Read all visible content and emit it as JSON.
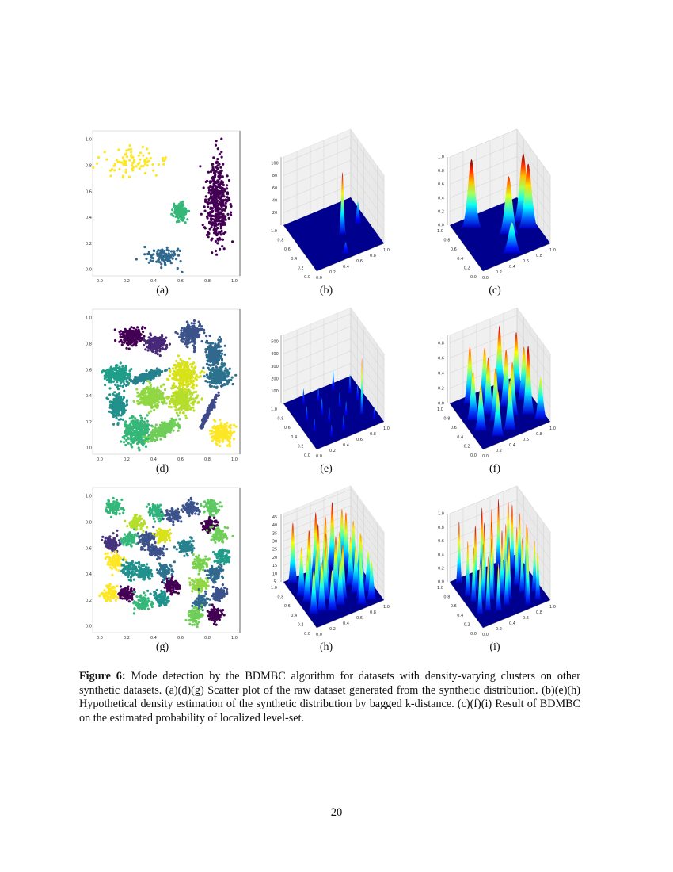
{
  "figure": {
    "subfigure_labels": [
      "(a)",
      "(b)",
      "(c)",
      "(d)",
      "(e)",
      "(f)",
      "(g)",
      "(h)",
      "(i)"
    ],
    "caption_label": "Figure 6:",
    "caption_text": " Mode detection by the BDMBC algorithm for datasets with density-varying clusters on other synthetic datasets. (a)(d)(g) Scatter plot of the raw dataset generated from the synthetic distribution. (b)(e)(h) Hypothetical density estimation of the synthetic distribution by bagged k-distance. (c)(f)(i) Result of BDMBC on the estimated probability of localized level-set."
  },
  "page_number": "20",
  "chart_data": [
    {
      "panel": "a",
      "type": "scatter",
      "xlim": [
        0,
        1
      ],
      "ylim": [
        0,
        1
      ],
      "xticks": [
        "0.0",
        "0.2",
        "0.4",
        "0.6",
        "0.8",
        "1.0"
      ],
      "yticks": [
        "0.0",
        "0.2",
        "0.4",
        "0.6",
        "0.8",
        "1.0"
      ],
      "clusters": [
        {
          "center": [
            0.23,
            0.81
          ],
          "spread": [
            0.12,
            0.06
          ],
          "n": 85,
          "color": "#fde725"
        },
        {
          "center": [
            0.87,
            0.52
          ],
          "spread": [
            0.04,
            0.16
          ],
          "n": 450,
          "color": "#440154"
        },
        {
          "center": [
            0.6,
            0.44
          ],
          "spread": [
            0.022,
            0.032
          ],
          "n": 200,
          "color": "#35b779"
        },
        {
          "center": [
            0.48,
            0.1
          ],
          "spread": [
            0.065,
            0.04
          ],
          "n": 100,
          "color": "#31688e"
        }
      ]
    },
    {
      "panel": "b",
      "type": "surface",
      "colormap": "jet",
      "xticks": [
        "0.0",
        "0.2",
        "0.4",
        "0.6",
        "0.8",
        "1.0"
      ],
      "yticks": [
        "0.0",
        "0.2",
        "0.4",
        "0.6",
        "0.8",
        "1.0"
      ],
      "zticks": [
        "20",
        "40",
        "60",
        "80",
        "100"
      ],
      "zlim": [
        0,
        110
      ],
      "peak_width": 0.05,
      "peaks": [
        [
          0.6,
          0.44,
          100
        ],
        [
          0.87,
          0.52,
          35
        ],
        [
          0.48,
          0.1,
          18
        ]
      ]
    },
    {
      "panel": "c",
      "type": "surface",
      "colormap": "jet",
      "xticks": [
        "0.0",
        "0.2",
        "0.4",
        "0.6",
        "0.8",
        "1.0"
      ],
      "yticks": [
        "0.0",
        "0.2",
        "0.4",
        "0.6",
        "0.8",
        "1.0"
      ],
      "zticks": [
        "0.0",
        "0.2",
        "0.4",
        "0.6",
        "0.8",
        "1.0"
      ],
      "zlim": [
        0,
        1
      ],
      "peak_width": 0.14,
      "peaks": [
        [
          0.23,
          0.81,
          1.0
        ],
        [
          0.87,
          0.55,
          1.0
        ],
        [
          0.87,
          0.4,
          0.95
        ],
        [
          0.6,
          0.44,
          0.85
        ],
        [
          0.48,
          0.1,
          0.45
        ]
      ]
    },
    {
      "panel": "d",
      "type": "scatter",
      "xlim": [
        0,
        1
      ],
      "ylim": [
        0,
        1
      ],
      "xticks": [
        "0.0",
        "0.2",
        "0.4",
        "0.6",
        "0.8",
        "1.0"
      ],
      "yticks": [
        "0.0",
        "0.2",
        "0.4",
        "0.6",
        "0.8",
        "1.0"
      ],
      "clusters": [
        {
          "center": [
            0.23,
            0.86
          ],
          "spread": [
            0.04,
            0.035
          ],
          "n": 250,
          "color": "#440154"
        },
        {
          "center": [
            0.42,
            0.8
          ],
          "spread": [
            0.04,
            0.03
          ],
          "n": 200,
          "color": "#482878"
        },
        {
          "center": [
            0.68,
            0.88
          ],
          "spread": [
            0.04,
            0.04
          ],
          "n": 200,
          "color": "#3b528b"
        },
        {
          "center": [
            0.85,
            0.72
          ],
          "spread": [
            0.03,
            0.045
          ],
          "n": 200,
          "color": "#31688e"
        },
        {
          "center": [
            0.88,
            0.55
          ],
          "spread": [
            0.04,
            0.04
          ],
          "n": 250,
          "color": "#2c728e"
        },
        {
          "center": [
            0.81,
            0.28
          ],
          "spread": [
            0.07,
            0.008
          ],
          "n": 150,
          "color": "#3e4a89",
          "angle": 65
        },
        {
          "center": [
            0.13,
            0.33
          ],
          "spread": [
            0.03,
            0.05
          ],
          "n": 200,
          "color": "#21918c"
        },
        {
          "center": [
            0.13,
            0.56
          ],
          "spread": [
            0.05,
            0.03
          ],
          "n": 250,
          "color": "#1f9e89"
        },
        {
          "center": [
            0.35,
            0.55
          ],
          "spread": [
            0.06,
            0.015
          ],
          "n": 200,
          "color": "#26828e",
          "angle": 20
        },
        {
          "center": [
            0.28,
            0.12
          ],
          "spread": [
            0.05,
            0.05
          ],
          "n": 300,
          "color": "#35b779"
        },
        {
          "center": [
            0.47,
            0.14
          ],
          "spread": [
            0.06,
            0.022
          ],
          "n": 250,
          "color": "#6ece58",
          "angle": 30
        },
        {
          "center": [
            0.38,
            0.39
          ],
          "spread": [
            0.05,
            0.04
          ],
          "n": 250,
          "color": "#90d743"
        },
        {
          "center": [
            0.62,
            0.37
          ],
          "spread": [
            0.05,
            0.045
          ],
          "n": 250,
          "color": "#b5de2b"
        },
        {
          "center": [
            0.62,
            0.56
          ],
          "spread": [
            0.05,
            0.05
          ],
          "n": 250,
          "color": "#d8e219"
        },
        {
          "center": [
            0.91,
            0.11
          ],
          "spread": [
            0.04,
            0.04
          ],
          "n": 200,
          "color": "#fde725"
        }
      ]
    },
    {
      "panel": "e",
      "type": "surface",
      "colormap": "jet",
      "xticks": [
        "0.0",
        "0.2",
        "0.4",
        "0.6",
        "0.8",
        "1.0"
      ],
      "yticks": [
        "0.0",
        "0.2",
        "0.4",
        "0.6",
        "0.8",
        "1.0"
      ],
      "zticks": [
        "100",
        "200",
        "300",
        "400",
        "500"
      ],
      "zlim": [
        0,
        550
      ],
      "peak_width": 0.025,
      "peaks": [
        [
          0.23,
          0.86,
          120
        ],
        [
          0.42,
          0.8,
          110
        ],
        [
          0.68,
          0.88,
          160
        ],
        [
          0.85,
          0.72,
          150
        ],
        [
          0.88,
          0.55,
          120
        ],
        [
          0.81,
          0.28,
          450
        ],
        [
          0.13,
          0.33,
          100
        ],
        [
          0.13,
          0.56,
          110
        ],
        [
          0.35,
          0.55,
          130
        ],
        [
          0.28,
          0.12,
          90
        ],
        [
          0.47,
          0.14,
          120
        ],
        [
          0.38,
          0.39,
          110
        ],
        [
          0.62,
          0.37,
          110
        ],
        [
          0.62,
          0.56,
          120
        ],
        [
          0.91,
          0.11,
          100
        ]
      ]
    },
    {
      "panel": "f",
      "type": "surface",
      "colormap": "jet",
      "xticks": [
        "0.0",
        "0.2",
        "0.4",
        "0.6",
        "0.8",
        "1.0"
      ],
      "yticks": [
        "0.0",
        "0.2",
        "0.4",
        "0.6",
        "0.8",
        "1.0"
      ],
      "zticks": [
        "0.0",
        "0.2",
        "0.4",
        "0.6",
        "0.8"
      ],
      "zlim": [
        0,
        0.9
      ],
      "peak_width": 0.09,
      "peaks": [
        [
          0.23,
          0.86,
          0.75
        ],
        [
          0.42,
          0.8,
          0.7
        ],
        [
          0.68,
          0.88,
          0.85
        ],
        [
          0.85,
          0.72,
          0.8
        ],
        [
          0.88,
          0.55,
          0.7
        ],
        [
          0.81,
          0.28,
          0.9
        ],
        [
          0.13,
          0.33,
          0.6
        ],
        [
          0.13,
          0.56,
          0.65
        ],
        [
          0.35,
          0.55,
          0.75
        ],
        [
          0.28,
          0.12,
          0.6
        ],
        [
          0.47,
          0.14,
          0.65
        ],
        [
          0.38,
          0.39,
          0.7
        ],
        [
          0.62,
          0.37,
          0.7
        ],
        [
          0.62,
          0.56,
          0.75
        ],
        [
          0.91,
          0.11,
          0.55
        ]
      ]
    },
    {
      "panel": "g",
      "type": "scatter",
      "xlim": [
        0,
        1
      ],
      "ylim": [
        0,
        1
      ],
      "xticks": [
        "0.0",
        "0.2",
        "0.4",
        "0.6",
        "0.8",
        "1.0"
      ],
      "yticks": [
        "0.0",
        "0.2",
        "0.4",
        "0.6",
        "0.8",
        "1.0"
      ],
      "cluster_spread": [
        0.028,
        0.028
      ],
      "cluster_n": 90,
      "clusters": [
        {
          "center": [
            0.1,
            0.92
          ],
          "color": "#35b779"
        },
        {
          "center": [
            0.275,
            0.79
          ],
          "color": "#b5de2b"
        },
        {
          "center": [
            0.42,
            0.88
          ],
          "color": "#2fb47c"
        },
        {
          "center": [
            0.55,
            0.85
          ],
          "color": "#3b528b"
        },
        {
          "center": [
            0.68,
            0.91
          ],
          "color": "#3b528b"
        },
        {
          "center": [
            0.83,
            0.92
          ],
          "color": "#5ec962"
        },
        {
          "center": [
            0.82,
            0.78
          ],
          "color": "#440154"
        },
        {
          "center": [
            0.89,
            0.7
          ],
          "color": "#6ece58"
        },
        {
          "center": [
            0.09,
            0.64
          ],
          "color": "#46337e"
        },
        {
          "center": [
            0.22,
            0.67
          ],
          "color": "#35b779"
        },
        {
          "center": [
            0.35,
            0.67
          ],
          "color": "#3b528b"
        },
        {
          "center": [
            0.47,
            0.7
          ],
          "color": "#d8e219"
        },
        {
          "center": [
            0.42,
            0.57
          ],
          "color": "#3b528b"
        },
        {
          "center": [
            0.64,
            0.61
          ],
          "color": "#26828e"
        },
        {
          "center": [
            0.11,
            0.5
          ],
          "color": "#fde725"
        },
        {
          "center": [
            0.22,
            0.44
          ],
          "color": "#21918c"
        },
        {
          "center": [
            0.33,
            0.41
          ],
          "color": "#21918c"
        },
        {
          "center": [
            0.49,
            0.42
          ],
          "color": "#2c728e"
        },
        {
          "center": [
            0.74,
            0.48
          ],
          "color": "#7ad151"
        },
        {
          "center": [
            0.91,
            0.53
          ],
          "color": "#1f9e89"
        },
        {
          "center": [
            0.86,
            0.41
          ],
          "color": "#31688e"
        },
        {
          "center": [
            0.54,
            0.31
          ],
          "color": "#440154"
        },
        {
          "center": [
            0.74,
            0.32
          ],
          "color": "#90d743"
        },
        {
          "center": [
            0.89,
            0.25
          ],
          "color": "#3b528b"
        },
        {
          "center": [
            0.08,
            0.25
          ],
          "color": "#fde725"
        },
        {
          "center": [
            0.2,
            0.25
          ],
          "color": "#440154"
        },
        {
          "center": [
            0.32,
            0.18
          ],
          "color": "#35b779"
        },
        {
          "center": [
            0.46,
            0.22
          ],
          "color": "#21918c"
        },
        {
          "center": [
            0.75,
            0.19
          ],
          "color": "#31688e"
        },
        {
          "center": [
            0.71,
            0.08
          ],
          "color": "#6ece58"
        },
        {
          "center": [
            0.86,
            0.09
          ],
          "color": "#440154"
        }
      ]
    },
    {
      "panel": "h",
      "type": "surface",
      "colormap": "jet",
      "xticks": [
        "0.0",
        "0.2",
        "0.4",
        "0.6",
        "0.8",
        "1.0"
      ],
      "yticks": [
        "0.0",
        "0.2",
        "0.4",
        "0.6",
        "0.8",
        "1.0"
      ],
      "zticks": [
        "5",
        "10",
        "15",
        "20",
        "25",
        "30",
        "35",
        "40",
        "45"
      ],
      "zlim": [
        5,
        47
      ],
      "peak_width": 0.07,
      "peaks": [
        [
          0.1,
          0.92,
          42
        ],
        [
          0.275,
          0.79,
          38
        ],
        [
          0.42,
          0.88,
          44
        ],
        [
          0.55,
          0.85,
          40
        ],
        [
          0.68,
          0.91,
          45
        ],
        [
          0.83,
          0.92,
          38
        ],
        [
          0.82,
          0.78,
          40
        ],
        [
          0.89,
          0.7,
          36
        ],
        [
          0.09,
          0.64,
          35
        ],
        [
          0.22,
          0.67,
          42
        ],
        [
          0.35,
          0.67,
          44
        ],
        [
          0.47,
          0.7,
          38
        ],
        [
          0.42,
          0.57,
          40
        ],
        [
          0.64,
          0.61,
          36
        ],
        [
          0.11,
          0.5,
          34
        ],
        [
          0.22,
          0.44,
          37
        ],
        [
          0.33,
          0.41,
          39
        ],
        [
          0.49,
          0.42,
          41
        ],
        [
          0.74,
          0.48,
          35
        ],
        [
          0.91,
          0.53,
          33
        ],
        [
          0.86,
          0.41,
          36
        ],
        [
          0.54,
          0.31,
          38
        ],
        [
          0.74,
          0.32,
          34
        ],
        [
          0.89,
          0.25,
          30
        ],
        [
          0.08,
          0.25,
          32
        ],
        [
          0.2,
          0.25,
          35
        ],
        [
          0.32,
          0.18,
          30
        ],
        [
          0.46,
          0.22,
          33
        ],
        [
          0.75,
          0.19,
          31
        ],
        [
          0.71,
          0.08,
          28
        ],
        [
          0.86,
          0.09,
          29
        ]
      ]
    },
    {
      "panel": "i",
      "type": "surface",
      "colormap": "jet",
      "xticks": [
        "0.0",
        "0.2",
        "0.4",
        "0.6",
        "0.8",
        "1.0"
      ],
      "yticks": [
        "0.0",
        "0.2",
        "0.4",
        "0.6",
        "0.8",
        "1.0"
      ],
      "zticks": [
        "0.0",
        "0.2",
        "0.4",
        "0.6",
        "0.8",
        "1.0"
      ],
      "zlim": [
        0,
        1
      ],
      "peak_width": 0.045,
      "peaks": [
        [
          0.1,
          0.92,
          0.9
        ],
        [
          0.275,
          0.79,
          0.85
        ],
        [
          0.42,
          0.88,
          1.0
        ],
        [
          0.55,
          0.85,
          0.95
        ],
        [
          0.68,
          0.91,
          1.0
        ],
        [
          0.83,
          0.92,
          0.9
        ],
        [
          0.82,
          0.78,
          0.95
        ],
        [
          0.89,
          0.7,
          0.85
        ],
        [
          0.09,
          0.64,
          0.8
        ],
        [
          0.22,
          0.67,
          0.95
        ],
        [
          0.35,
          0.67,
          0.95
        ],
        [
          0.47,
          0.7,
          0.9
        ],
        [
          0.42,
          0.57,
          0.9
        ],
        [
          0.64,
          0.61,
          0.85
        ],
        [
          0.11,
          0.5,
          0.8
        ],
        [
          0.22,
          0.44,
          0.85
        ],
        [
          0.33,
          0.41,
          0.9
        ],
        [
          0.49,
          0.42,
          0.95
        ],
        [
          0.74,
          0.48,
          0.85
        ],
        [
          0.91,
          0.53,
          0.8
        ],
        [
          0.86,
          0.41,
          0.85
        ],
        [
          0.54,
          0.31,
          0.9
        ],
        [
          0.74,
          0.32,
          0.8
        ],
        [
          0.89,
          0.25,
          0.75
        ],
        [
          0.08,
          0.25,
          0.75
        ],
        [
          0.2,
          0.25,
          0.8
        ],
        [
          0.32,
          0.18,
          0.7
        ],
        [
          0.46,
          0.22,
          0.75
        ],
        [
          0.75,
          0.19,
          0.7
        ],
        [
          0.71,
          0.08,
          0.65
        ],
        [
          0.86,
          0.09,
          0.7
        ]
      ]
    }
  ]
}
